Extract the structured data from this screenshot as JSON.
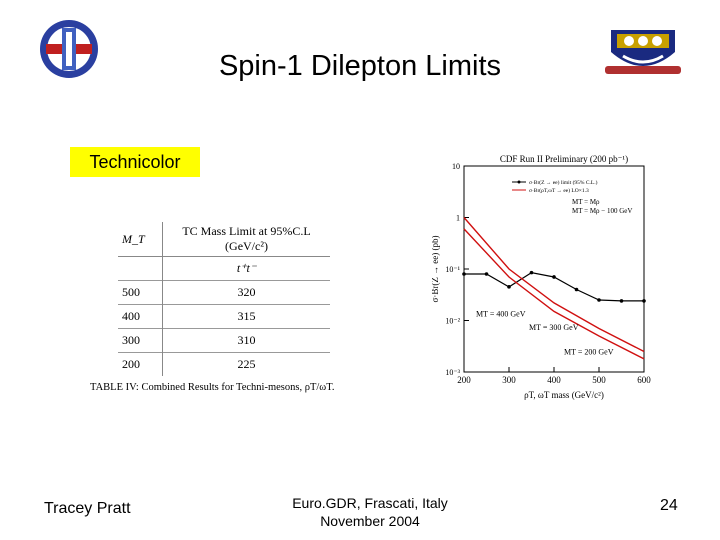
{
  "slide": {
    "title": "Spin-1 Dilepton Limits",
    "section_label": "Technicolor",
    "footer_author": "Tracey Pratt",
    "footer_event_line1": "Euro.GDR, Frascati, Italy",
    "footer_event_line2": "November 2004",
    "page_number": "24"
  },
  "table": {
    "headers": [
      "M_T",
      "TC Mass Limit at 95%C.L (GeV/c²)"
    ],
    "subheader": "t⁺t⁻",
    "rows": [
      {
        "mt": "500",
        "limit": "320"
      },
      {
        "mt": "400",
        "limit": "315"
      },
      {
        "mt": "300",
        "limit": "310"
      },
      {
        "mt": "200",
        "limit": "225"
      }
    ],
    "caption": "TABLE IV: Combined Results for Techni-mesons, ρT/ωT."
  },
  "chart_data": {
    "type": "line",
    "title": "CDF Run II Preliminary (200 pb⁻¹)",
    "xlabel": "ρT, ωT mass (GeV/c²)",
    "ylabel": "σ·Br(Z → ee) (pb)",
    "xlim": [
      200,
      600
    ],
    "ylim_log10": [
      -3,
      1
    ],
    "yscale": "log",
    "xticks": [
      "200",
      "300",
      "400",
      "500",
      "600"
    ],
    "yticks": [
      "10",
      "1",
      "10⁻¹",
      "10⁻²",
      "10⁻³"
    ],
    "legend": [
      "σ·Br(Z → ee) limit (95% C.L.)",
      "σ·Br(ρT,ωT → ee) LO×1.3"
    ],
    "legend_notes": [
      "MT = Mρ",
      "MT = Mρ − 100 GeV"
    ],
    "annotations": [
      "MT = 400 GeV",
      "MT = 300 GeV",
      "MT = 200 GeV"
    ],
    "series": [
      {
        "name": "σ·Br(Z → ee) limit (95% C.L.)",
        "color": "#000000",
        "x": [
          200,
          250,
          300,
          350,
          400,
          450,
          500,
          550,
          600
        ],
        "y": [
          0.08,
          0.08,
          0.045,
          0.085,
          0.07,
          0.04,
          0.025,
          0.024,
          0.024
        ]
      },
      {
        "name": "σ·Br(ρT,ωT → ee) LO×1.3",
        "color": "#d01010",
        "x": [
          200,
          300,
          400,
          500,
          600
        ],
        "y": [
          1.0,
          0.1,
          0.022,
          0.007,
          0.0025
        ]
      },
      {
        "name": "",
        "color": "#d01010",
        "x": [
          200,
          300,
          400,
          500,
          600
        ],
        "y": [
          0.6,
          0.07,
          0.015,
          0.005,
          0.0018
        ]
      }
    ]
  }
}
